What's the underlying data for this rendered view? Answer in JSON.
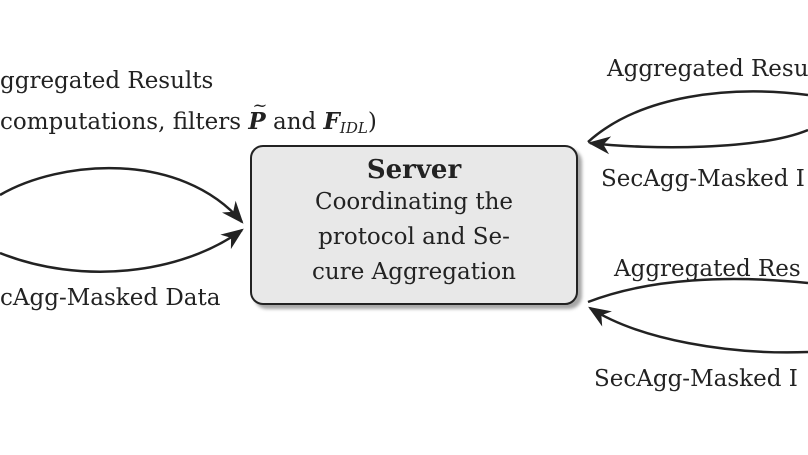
{
  "left": {
    "results_line1": "ggregated Results",
    "results_line2_prefix": "computations, filters ",
    "filter_p": "P",
    "results_and": " and ",
    "filter_f": "F",
    "filter_f_sub": "IDL",
    "results_close": ")",
    "masked_data": "cAgg-Masked Data"
  },
  "server": {
    "title": "Server",
    "line1": "Coordinating the",
    "line2": "protocol and Se-",
    "line3": "cure Aggregation"
  },
  "right_top": {
    "results": "Aggregated Resu",
    "masked": "SecAgg-Masked I"
  },
  "right_bottom": {
    "results": "Aggregated Res",
    "masked": "SecAgg-Masked I"
  }
}
